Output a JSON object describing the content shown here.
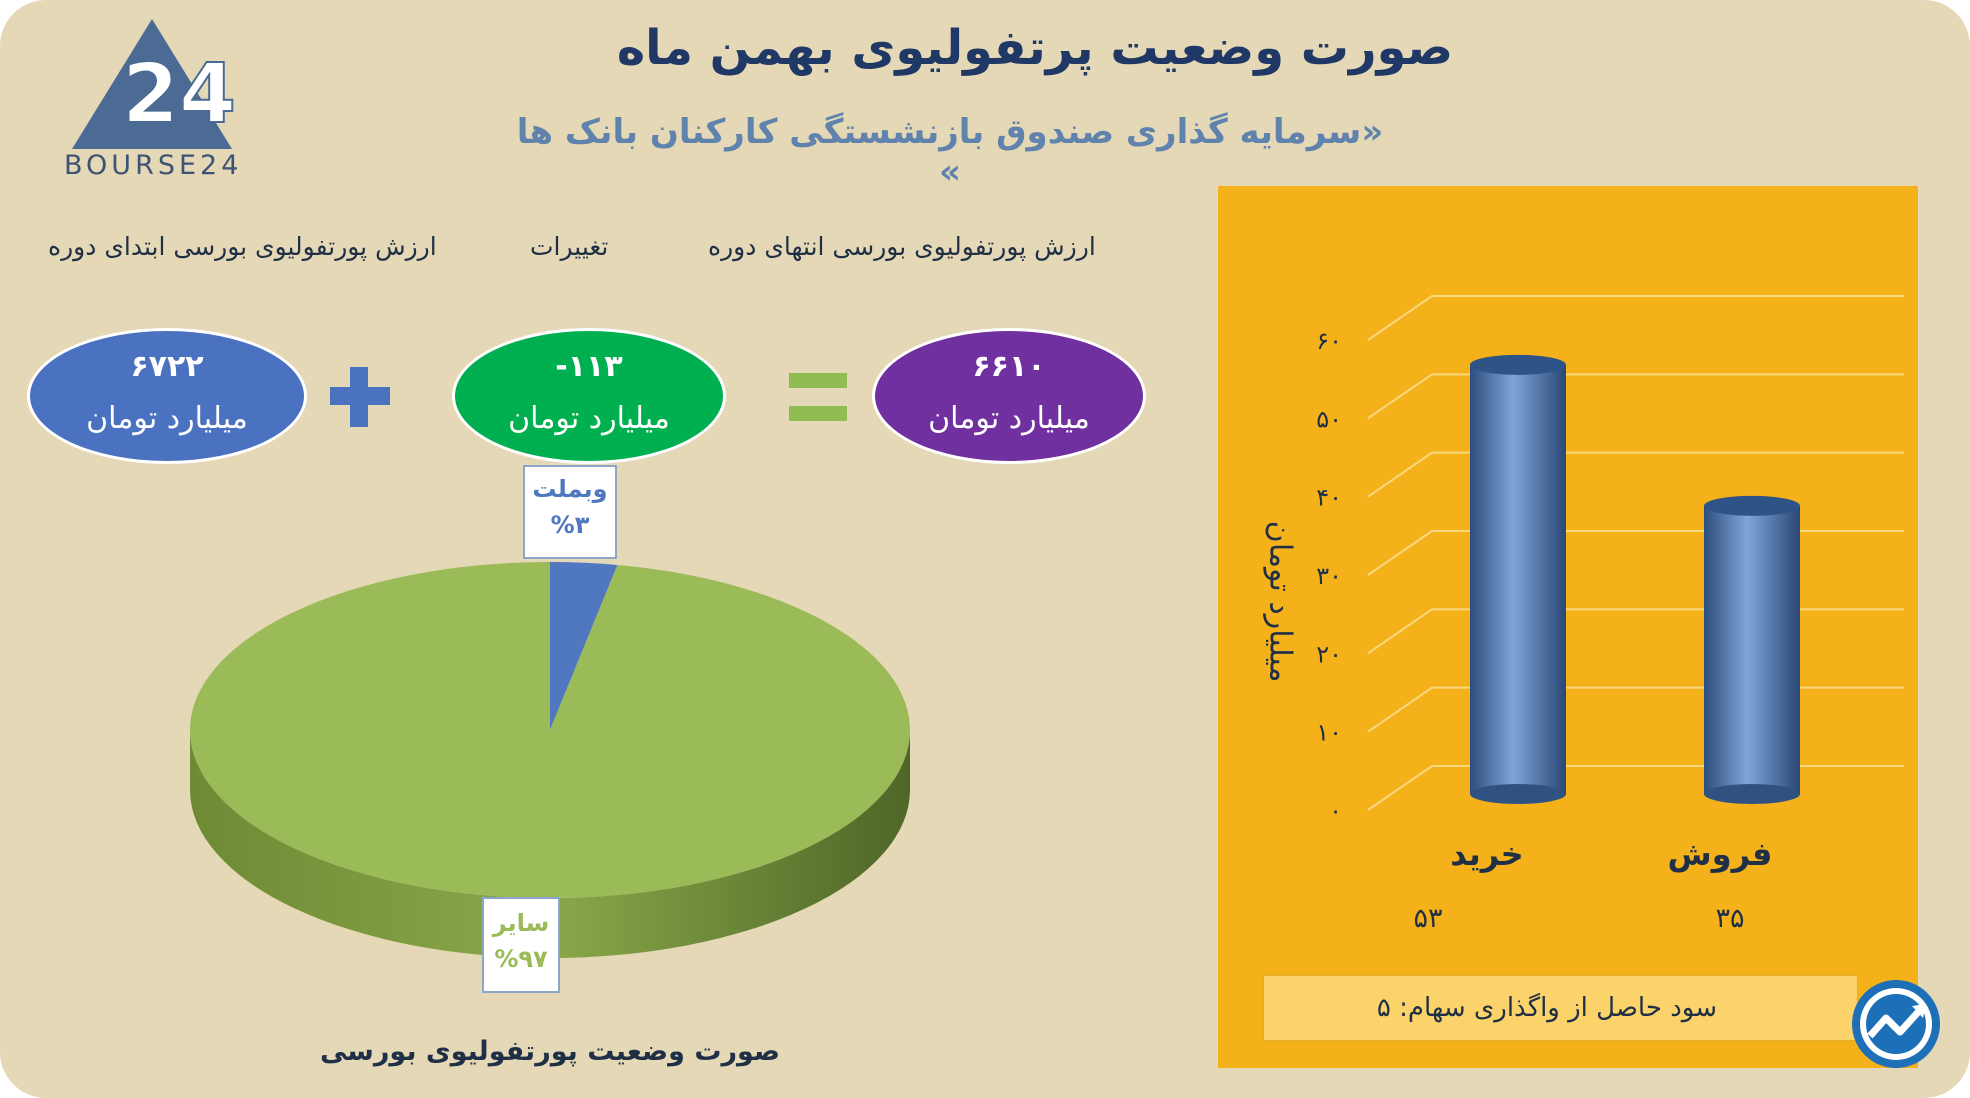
{
  "brand": {
    "logo_text": "BOURSE24"
  },
  "header": {
    "title": "صورت وضعیت پرتفولیوی بهمن ماه",
    "subtitle": "«سرمایه گذاری صندوق بازنشستگی کارکنان بانک ها »"
  },
  "equation": {
    "start_label": "ارزش پورتفولیوی بورسی ابتدای دوره",
    "change_label": "تغییرات",
    "end_label": "ارزش پورتفولیوی بورسی انتهای دوره",
    "start_value": "۶۷۲۲",
    "change_value": "-۱۱۳",
    "end_value": "۶۶۱۰",
    "unit": "میلیارد تومان",
    "colors": {
      "start": "#4a72c1",
      "change": "#00b050",
      "end": "#7030a0",
      "plus": "#4a72c1",
      "equals": "#8fbd52"
    }
  },
  "pie": {
    "caption": "صورت وضعیت پورتفولیوی بورسی",
    "slices": [
      {
        "name": "وبملت",
        "pct_label": "%۳",
        "value": 3,
        "color": "#4f78c0"
      },
      {
        "name": "سایر",
        "pct_label": "%۹۷",
        "value": 97,
        "color": "#9bbb59"
      }
    ]
  },
  "trades": {
    "ylabel": "میلیارد تومان",
    "yticks": [
      "۰",
      "۱۰",
      "۲۰",
      "۳۰",
      "۴۰",
      "۵۰",
      "۶۰"
    ],
    "bar_values_text": [
      "۵۳",
      "۳۵"
    ],
    "profit_text": "سود حاصل از واگذاری سهام: ۵"
  },
  "chart_data": [
    {
      "type": "pie",
      "categories": [
        "وبملت",
        "سایر"
      ],
      "values": [
        3,
        97
      ],
      "title": "صورت وضعیت پورتفولیوی بورسی"
    },
    {
      "type": "bar",
      "categories": [
        "خرید",
        "فروش"
      ],
      "values": [
        53,
        35
      ],
      "ylabel": "میلیارد تومان",
      "ylim": [
        0,
        60
      ],
      "grid": true
    }
  ]
}
